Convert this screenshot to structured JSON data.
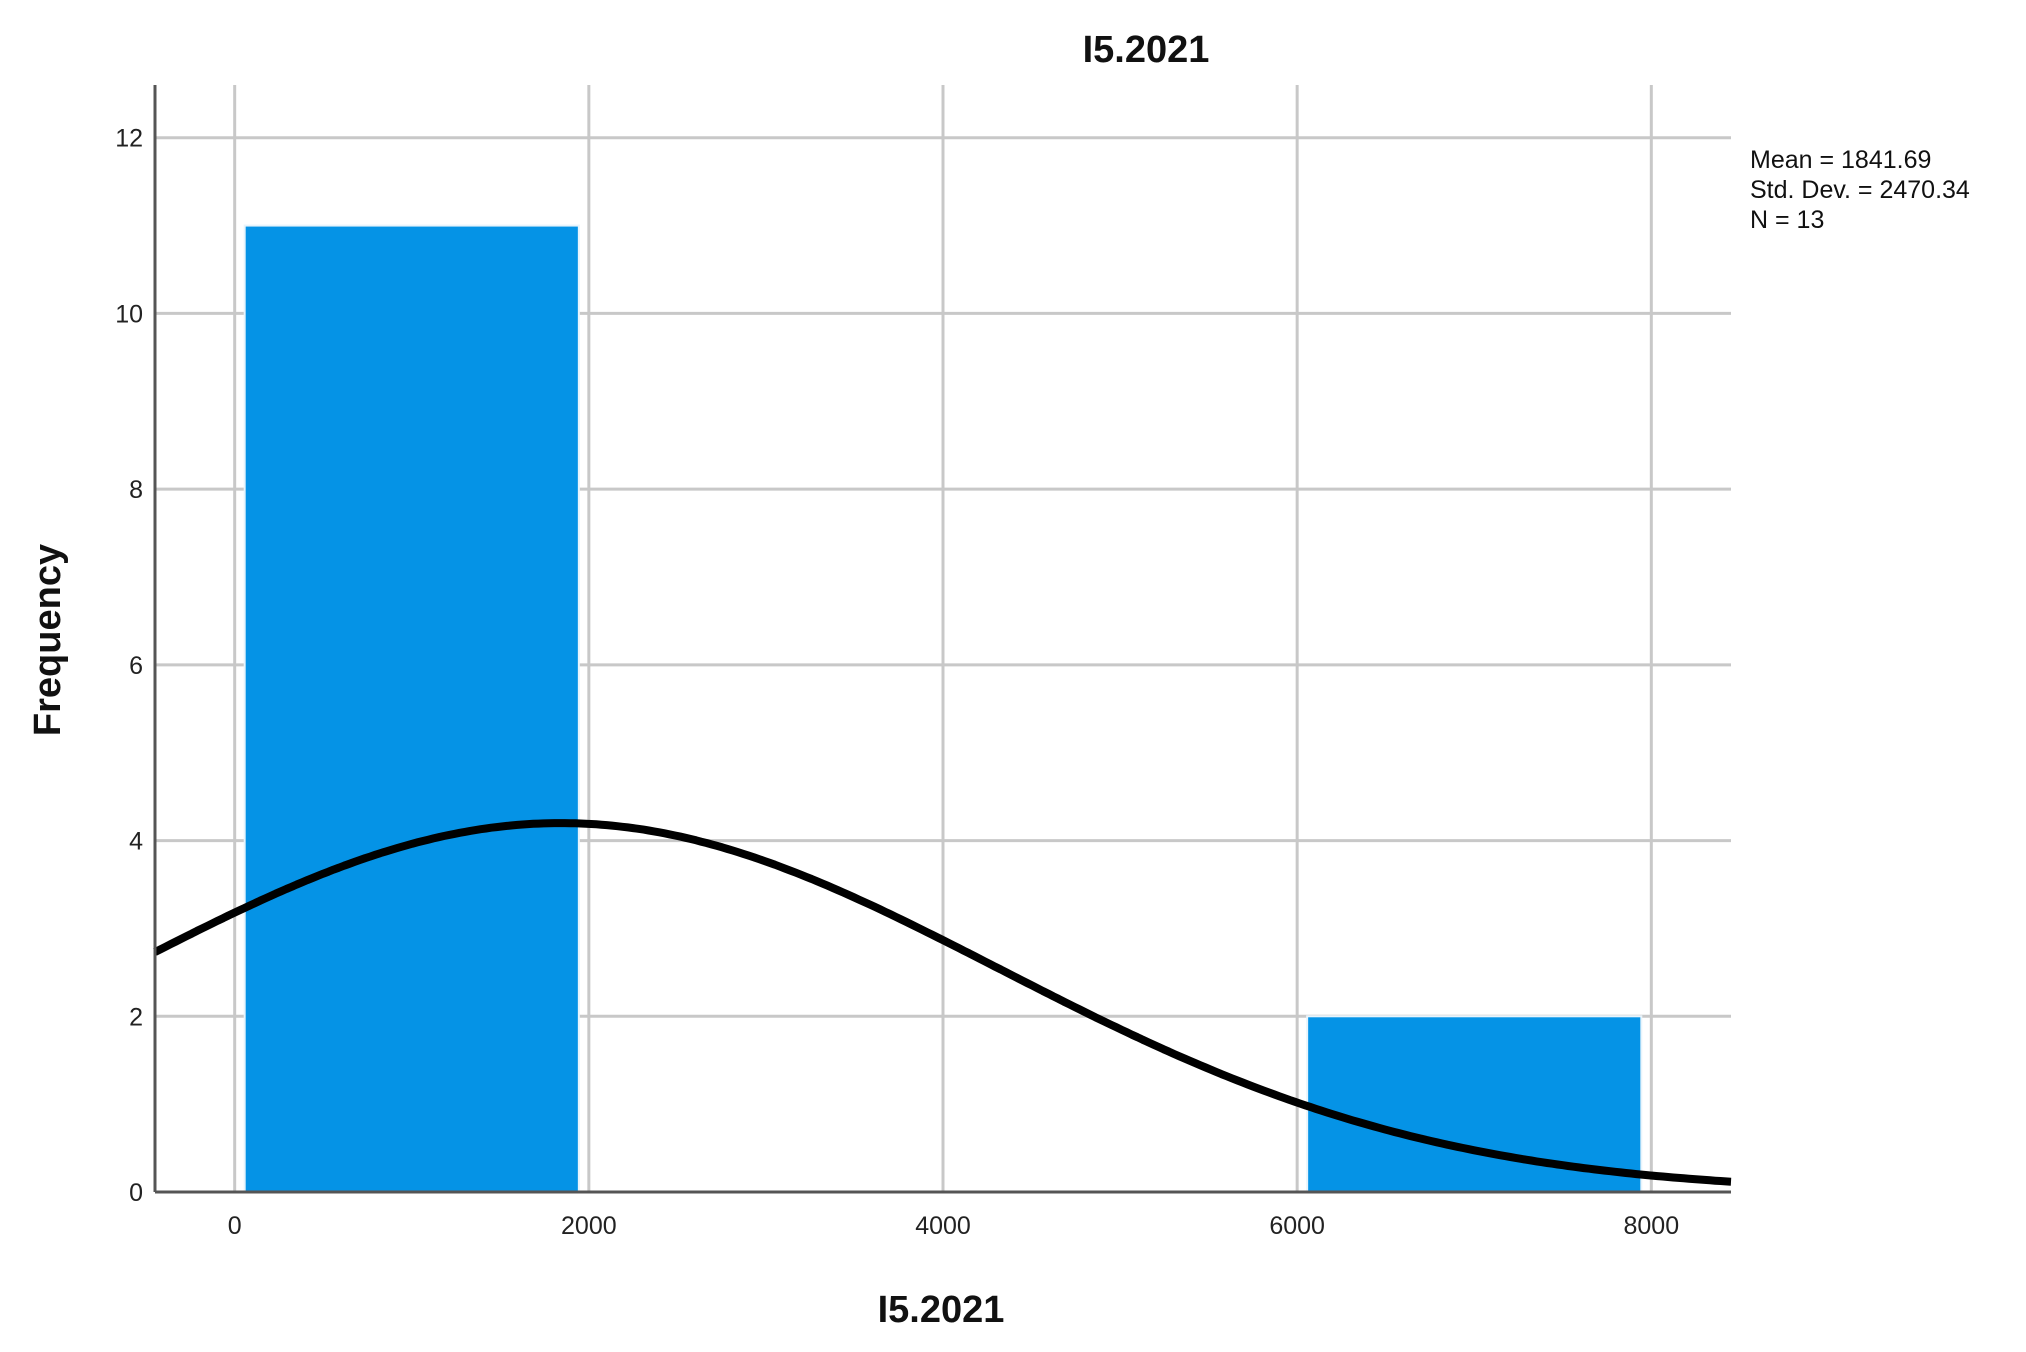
{
  "chart_data": {
    "type": "bar",
    "subtype": "histogram-with-normal-curve",
    "title": "I5.2021",
    "xlabel": "I5.2021",
    "ylabel": "Frequency",
    "bins": [
      {
        "start": 0,
        "end": 2000,
        "count": 11
      },
      {
        "start": 6000,
        "end": 8000,
        "count": 2
      }
    ],
    "xlim": [
      -450,
      8450
    ],
    "ylim": [
      0,
      12.6
    ],
    "x_ticks": [
      0,
      2000,
      4000,
      6000,
      8000
    ],
    "y_ticks": [
      0,
      2,
      4,
      6,
      8,
      10,
      12
    ],
    "grid": true,
    "normal_curve": {
      "mean": 1841.69,
      "std": 2470.34,
      "n": 13,
      "bin_width": 2000
    },
    "stats": [
      "Mean = 1841.69",
      "Std. Dev. = 2470.34",
      "N = 13"
    ],
    "colors": {
      "bar": "#0593E6",
      "curve": "#000000",
      "grid": "#C8C8C8"
    }
  }
}
